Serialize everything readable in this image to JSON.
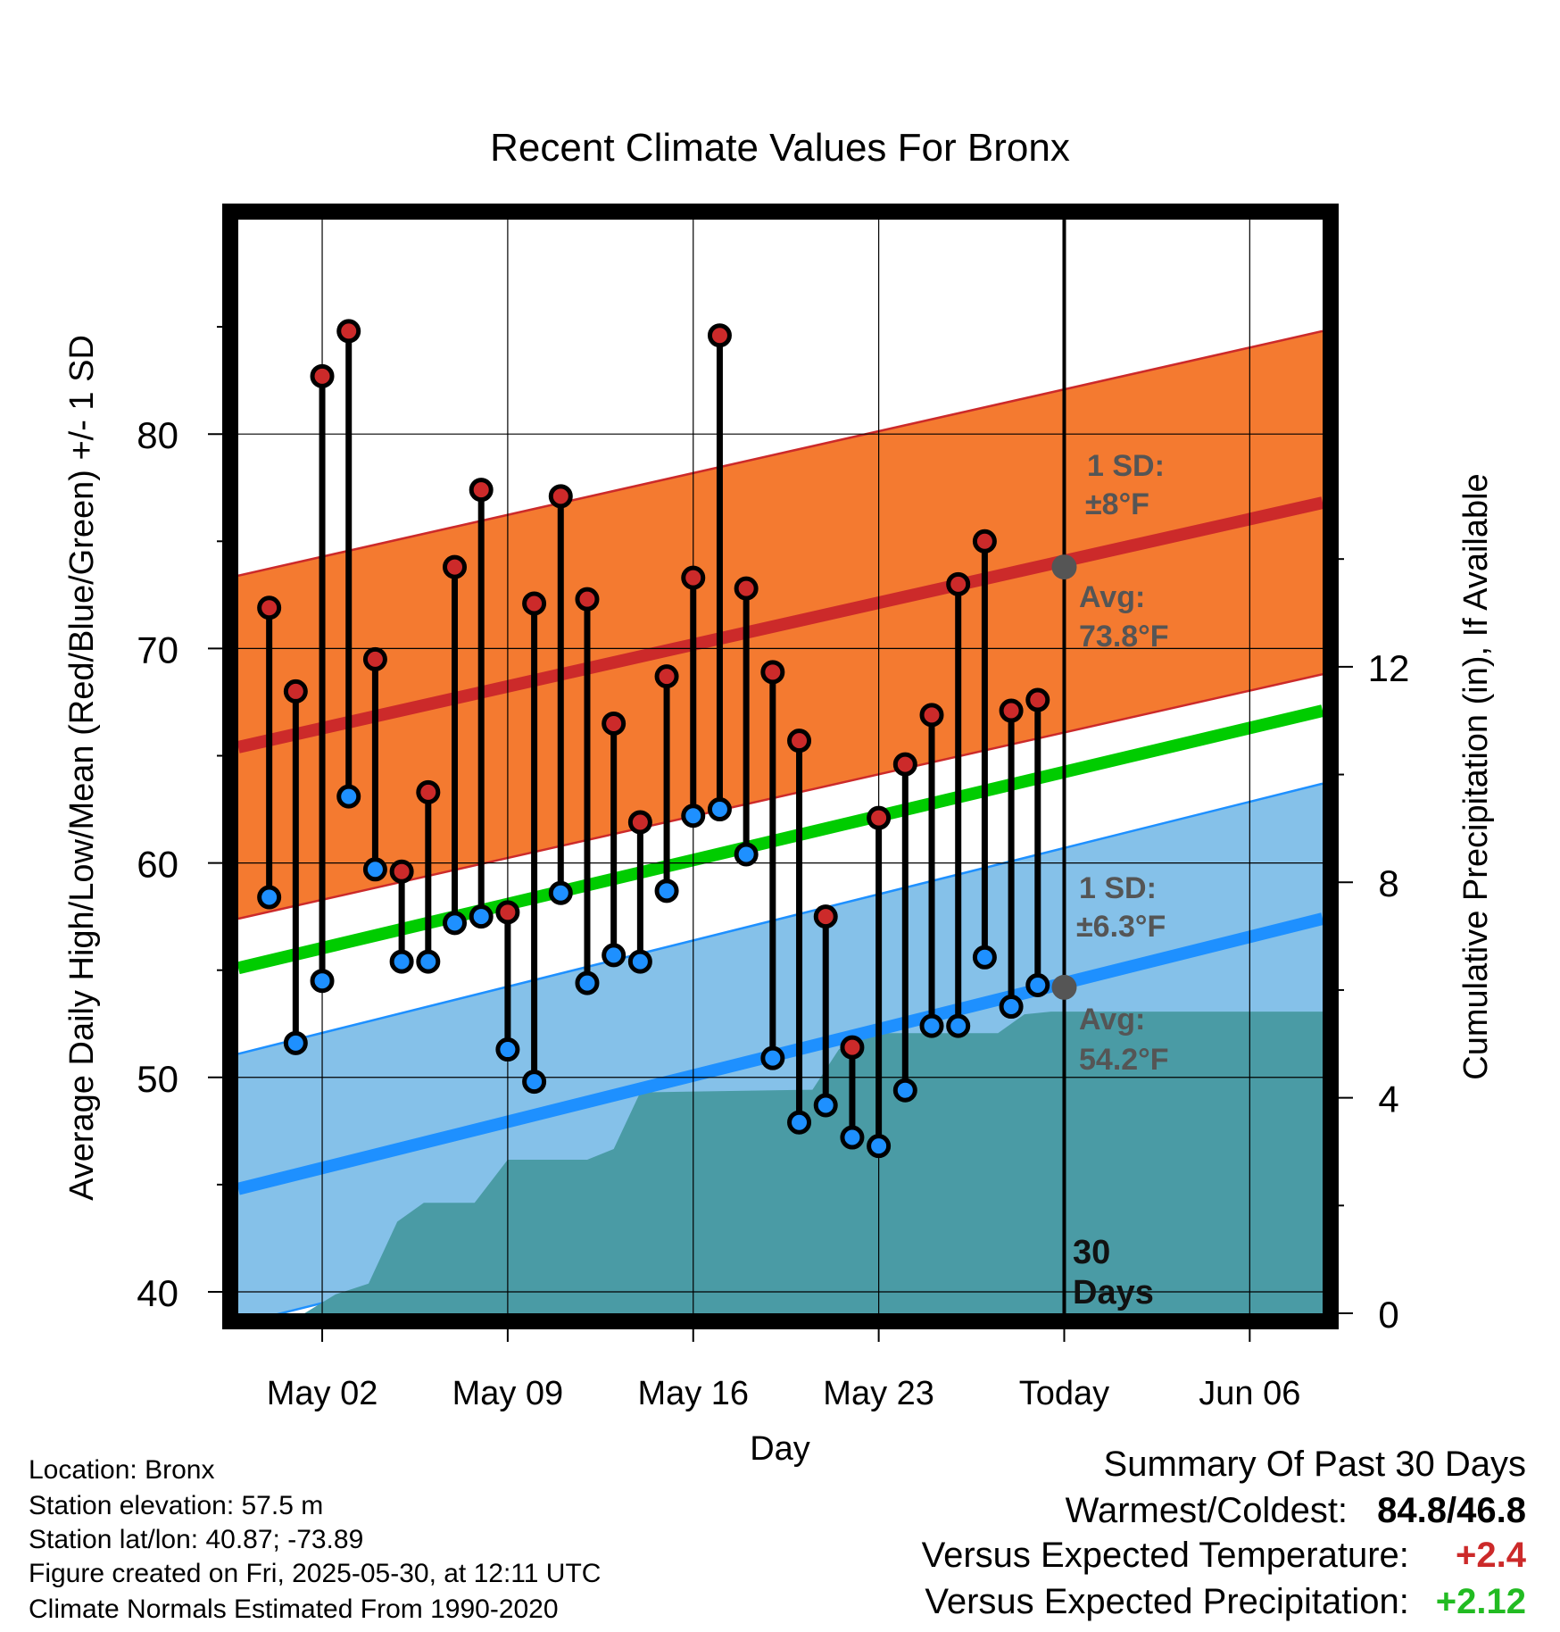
{
  "chart_data": {
    "type": "line",
    "title": "Recent Climate Values For Bronx",
    "xlabel": "Day",
    "ylabel": "Average Daily High/Low/Mean (Red/Blue/Green) +/- 1 SD",
    "y2label": "Cumulative Precipitation (in), If Available",
    "ylim": [
      39,
      90
    ],
    "y2lim": [
      0,
      20.3
    ],
    "yticks": [
      40,
      50,
      60,
      70,
      80
    ],
    "y2ticks": [
      0,
      4,
      8,
      12
    ],
    "x_ticks": [
      {
        "date": "2025-05-02",
        "label": "May 02"
      },
      {
        "date": "2025-05-09",
        "label": "May 09"
      },
      {
        "date": "2025-05-16",
        "label": "May 16"
      },
      {
        "date": "2025-05-23",
        "label": "May 23"
      },
      {
        "date": "2025-05-30",
        "label": "Today"
      },
      {
        "date": "2025-06-06",
        "label": "Jun 06"
      }
    ],
    "xlim": [
      "2025-04-28T20:00",
      "2025-06-08T18:00"
    ],
    "today": "2025-05-30",
    "dates": [
      "2025-04-30",
      "2025-05-01",
      "2025-05-02",
      "2025-05-03",
      "2025-05-04",
      "2025-05-05",
      "2025-05-06",
      "2025-05-07",
      "2025-05-08",
      "2025-05-09",
      "2025-05-10",
      "2025-05-11",
      "2025-05-12",
      "2025-05-13",
      "2025-05-14",
      "2025-05-15",
      "2025-05-16",
      "2025-05-17",
      "2025-05-18",
      "2025-05-19",
      "2025-05-20",
      "2025-05-21",
      "2025-05-22",
      "2025-05-23",
      "2025-05-24",
      "2025-05-25",
      "2025-05-26",
      "2025-05-27",
      "2025-05-28",
      "2025-05-29"
    ],
    "series": [
      {
        "name": "High",
        "color": "#cc2a2a",
        "values": [
          71.9,
          68.0,
          82.7,
          84.8,
          69.5,
          59.6,
          63.3,
          73.8,
          77.4,
          57.7,
          72.1,
          77.1,
          72.3,
          66.5,
          61.9,
          68.7,
          73.3,
          84.6,
          72.8,
          68.9,
          65.7,
          57.5,
          51.4,
          62.1,
          64.6,
          66.9,
          73.0,
          75.0,
          67.1,
          67.6
        ]
      },
      {
        "name": "Low",
        "color": "#1e90ff",
        "values": [
          58.4,
          51.6,
          54.5,
          63.1,
          59.7,
          55.4,
          55.4,
          57.2,
          57.5,
          51.3,
          49.8,
          58.6,
          54.4,
          55.7,
          55.4,
          58.7,
          62.2,
          62.5,
          60.4,
          50.9,
          47.9,
          48.7,
          47.2,
          46.8,
          49.4,
          52.4,
          52.4,
          55.6,
          53.3,
          54.3
        ]
      }
    ],
    "normals": {
      "high_mean": [
        65.4,
        76.8
      ],
      "high_sd": 8.0,
      "low_mean": [
        44.8,
        57.4
      ],
      "low_sd": 6.3,
      "avg_mean": [
        55.1,
        67.1
      ],
      "range_dates": [
        "2025-04-28T20:00",
        "2025-06-08T18:00"
      ]
    },
    "precipitation": [
      {
        "date": "2025-04-28T20:00",
        "value": 0
      },
      {
        "date": "2025-05-01T08:00",
        "value": 0
      },
      {
        "date": "2025-05-02T12:00",
        "value": 0.35
      },
      {
        "date": "2025-05-03T18:00",
        "value": 0.55
      },
      {
        "date": "2025-05-04T20:00",
        "value": 1.7
      },
      {
        "date": "2025-05-05T20:00",
        "value": 2.05
      },
      {
        "date": "2025-05-07T18:00",
        "value": 2.05
      },
      {
        "date": "2025-05-09T00:00",
        "value": 2.85
      },
      {
        "date": "2025-05-12T00:00",
        "value": 2.85
      },
      {
        "date": "2025-05-13T00:00",
        "value": 3.05
      },
      {
        "date": "2025-05-14T00:00",
        "value": 4.1
      },
      {
        "date": "2025-05-20T12:00",
        "value": 4.15
      },
      {
        "date": "2025-05-21T12:00",
        "value": 4.9
      },
      {
        "date": "2025-05-23T00:00",
        "value": 5.2
      },
      {
        "date": "2025-05-27T12:00",
        "value": 5.2
      },
      {
        "date": "2025-05-28T12:00",
        "value": 5.55
      },
      {
        "date": "2025-05-29T12:00",
        "value": 5.6
      },
      {
        "date": "2025-06-08T18:00",
        "value": 5.6
      }
    ],
    "annotations": {
      "high_sd_label": "1 SD:",
      "high_sd_value": "±8°F",
      "high_avg_label": "Avg:",
      "high_avg_value": "73.8°F",
      "high_avg_marker": 73.8,
      "low_sd_label": "1 SD:",
      "low_sd_value": "±6.3°F",
      "low_avg_label": "Avg:",
      "low_avg_value": "54.2°F",
      "low_avg_marker": 54.2,
      "days_label_1": "30",
      "days_label_2": "Days"
    },
    "colors": {
      "high_band": "#f47a30",
      "high_line": "#cc2a2a",
      "low_band": "#85c1e9",
      "low_line": "#1e90ff",
      "mean_line": "#00cc00",
      "precip": "#4a9ba5",
      "marker": "#555555"
    },
    "grid": true
  },
  "footer": {
    "location": "Location: Bronx",
    "elevation": "Station elevation: 57.5 m",
    "latlon": "Station lat/lon: 40.87; -73.89",
    "created": "Figure created on Fri, 2025-05-30, at 12:11 UTC",
    "normals": "Climate Normals Estimated From 1990-2020"
  },
  "summary": {
    "title": "Summary Of Past 30 Days",
    "warmest_label": "Warmest/Coldest:",
    "warmest_value": "84.8/46.8",
    "temp_label": "Versus Expected Temperature:",
    "temp_value": "+2.4",
    "temp_color": "#cc2a2a",
    "precip_label": "Versus Expected Precipitation:",
    "precip_value": "+2.12",
    "precip_color": "#22bb22"
  }
}
